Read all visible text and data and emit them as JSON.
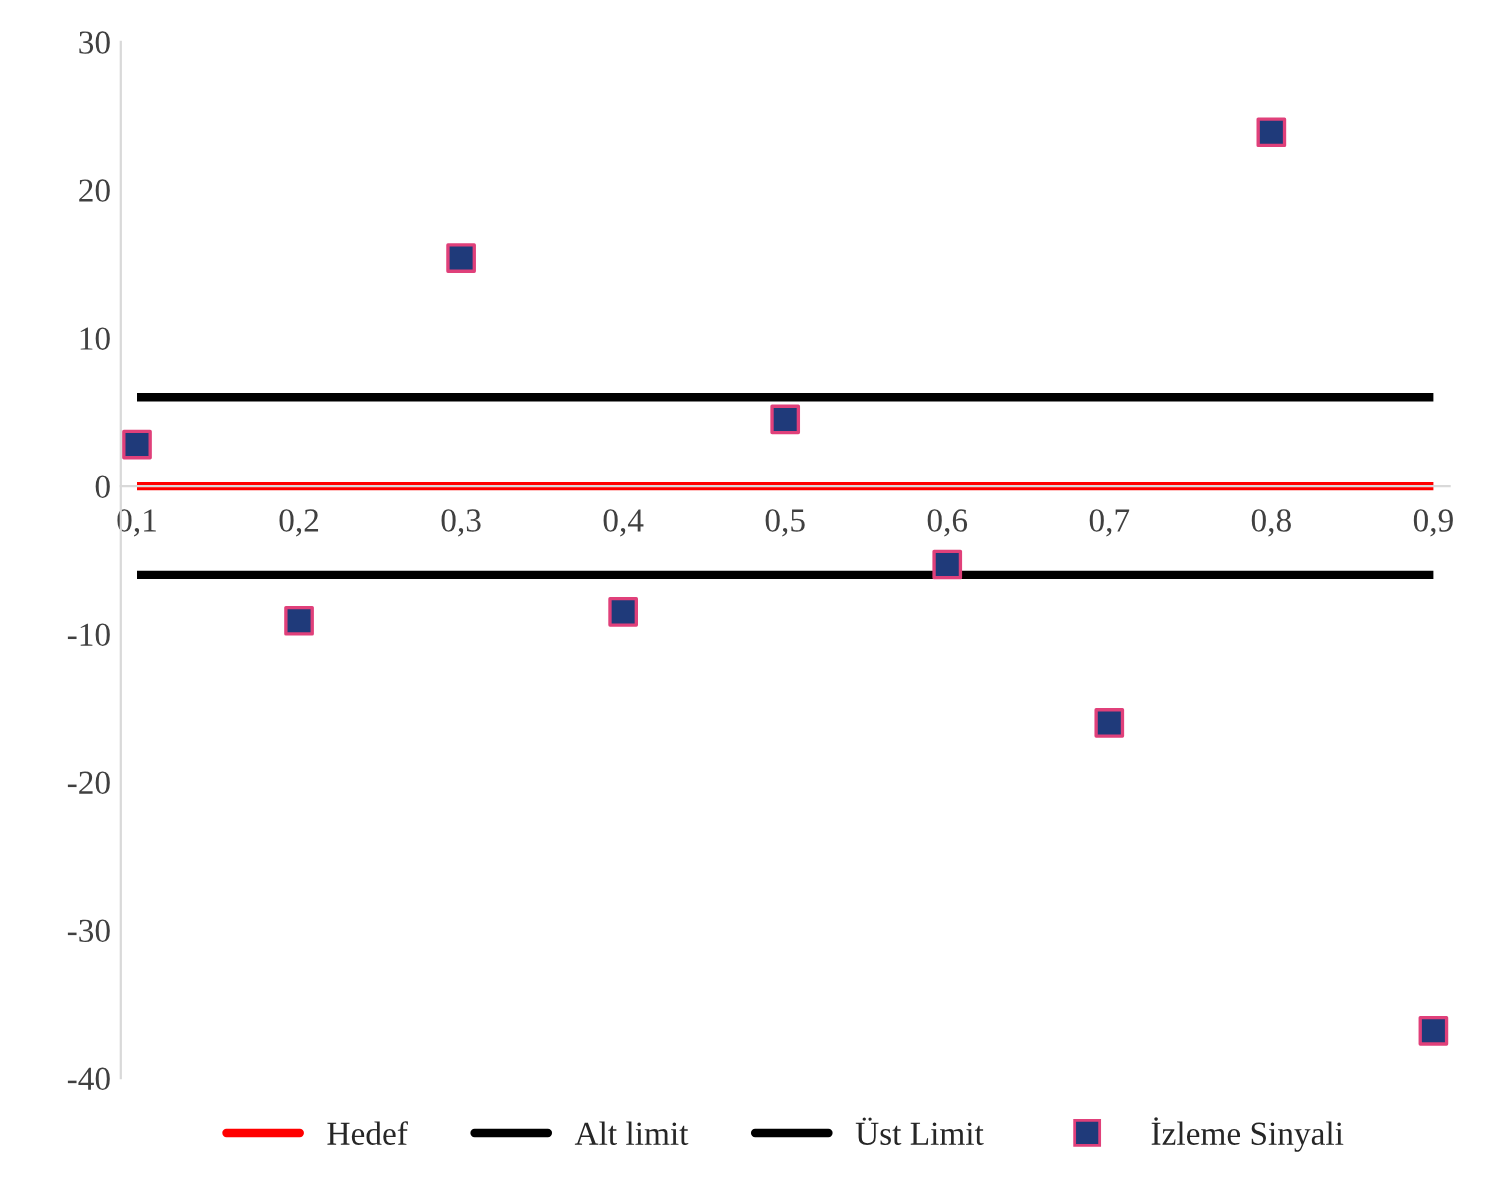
{
  "chart_data": {
    "type": "line",
    "categories": [
      "0,1",
      "0,2",
      "0,3",
      "0,4",
      "0,5",
      "0,6",
      "0,7",
      "0,8",
      "0,9"
    ],
    "series": [
      {
        "name": "Hedef",
        "color": "#ff0000",
        "values": [
          0,
          0,
          0,
          0,
          0,
          0,
          0,
          0,
          0
        ]
      },
      {
        "name": "Alt limit",
        "color": "#000000",
        "values": [
          -6,
          -6,
          -6,
          -6,
          -6,
          -6,
          -6,
          -6,
          -6
        ]
      },
      {
        "name": "Üst Limit",
        "color": "#000000",
        "values": [
          6,
          6,
          6,
          6,
          6,
          6,
          6,
          6,
          6
        ]
      },
      {
        "name": "İzleme Sinyali",
        "type": "scatter",
        "color": "#1f3a7a",
        "marker": "square",
        "values": [
          2.8,
          -9.1,
          15.4,
          -8.5,
          4.5,
          -5.3,
          -16,
          23.9,
          -36.8
        ]
      }
    ],
    "ylim": [
      -40,
      30
    ],
    "yticks": [
      -40,
      -30,
      -20,
      -10,
      0,
      10,
      20,
      30
    ],
    "grid": false,
    "legend": "bottom"
  }
}
